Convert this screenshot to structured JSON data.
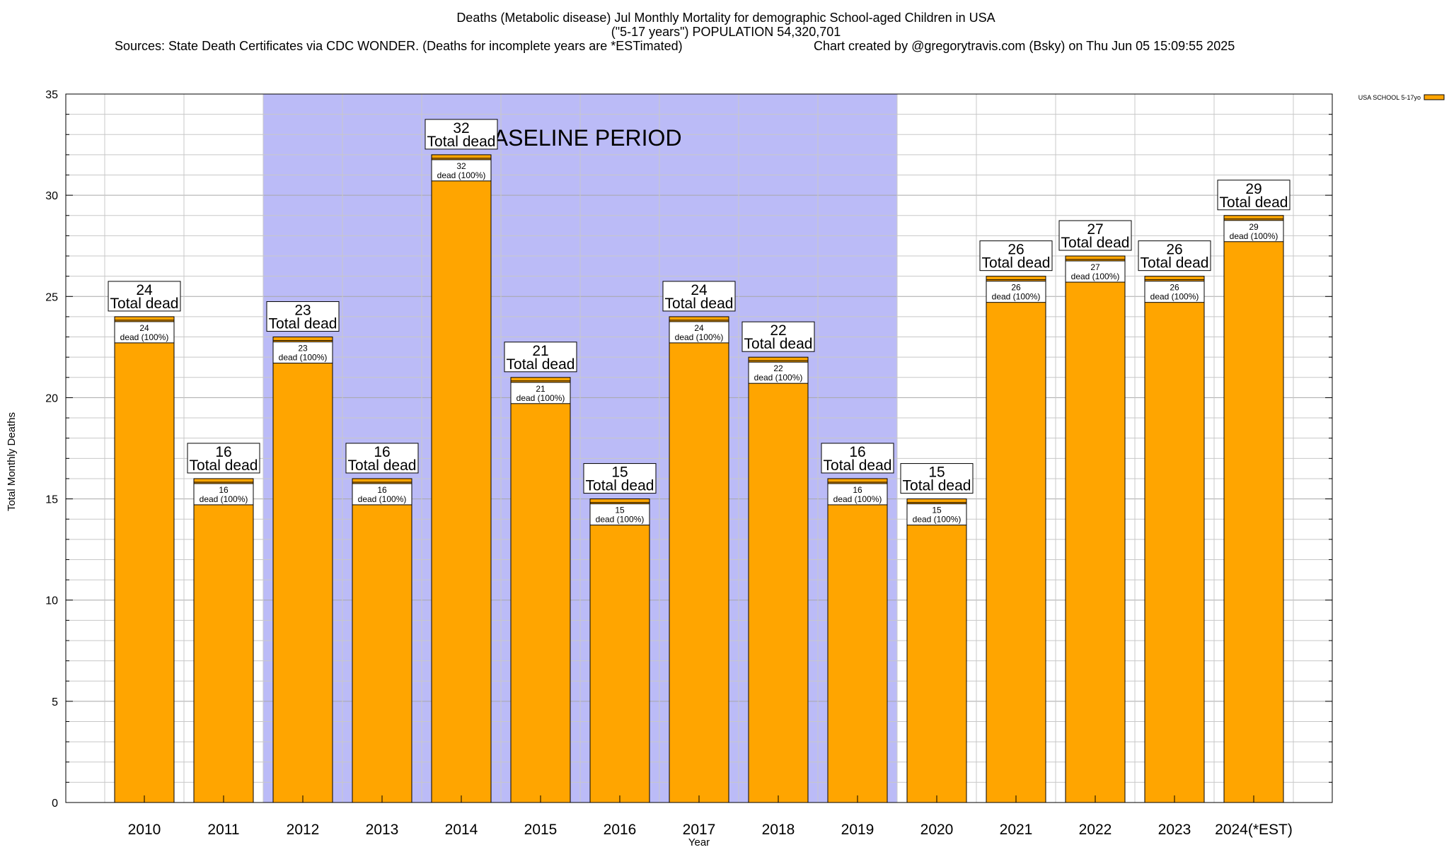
{
  "chart_data": {
    "type": "bar",
    "title": "Deaths (Metabolic disease) Jul Monthly Mortality for demographic School-aged Children in USA",
    "subtitle": "(\"5-17 years\") POPULATION 54,320,701",
    "source_left": "Sources: State Death Certificates via CDC WONDER. (Deaths for incomplete years are *ESTimated)",
    "source_right": "Chart created by @gregorytravis.com (Bsky) on Thu Jun 05 15:09:55 2025",
    "xlabel": "Year",
    "ylabel": "Total Monthly Deaths",
    "ylim": [
      0,
      35
    ],
    "yticks": [
      0,
      5,
      10,
      15,
      20,
      25,
      30,
      35
    ],
    "grid": true,
    "legend_position": "top-right",
    "categories": [
      "2010",
      "2011",
      "2012",
      "2013",
      "2014",
      "2015",
      "2016",
      "2017",
      "2018",
      "2019",
      "2020",
      "2021",
      "2022",
      "2023",
      "2024(*EST)"
    ],
    "series": [
      {
        "name": "USA SCHOOL 5-17yo",
        "color": "#ffa500",
        "values": [
          24,
          16,
          23,
          16,
          32,
          21,
          15,
          24,
          22,
          16,
          15,
          26,
          27,
          26,
          29
        ]
      }
    ],
    "total_label": "Total dead",
    "inner_label_suffix": "dead (100%)",
    "baseline": {
      "label": "BASELINE PERIOD",
      "from": "2012",
      "to": "2019",
      "color": "#bbbbf7"
    }
  }
}
